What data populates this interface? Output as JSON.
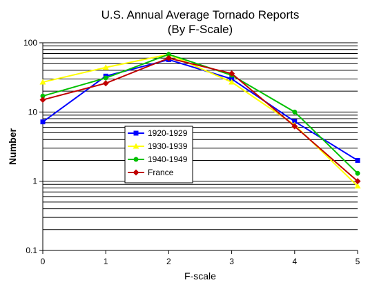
{
  "chart_data": {
    "type": "line",
    "title": "U.S. Annual Average Tornado Reports",
    "subtitle": "(By F-Scale)",
    "xlabel": "F-scale",
    "ylabel": "Number",
    "x": [
      0,
      1,
      2,
      3,
      4,
      5
    ],
    "x_tick_labels": [
      "0",
      "1",
      "2",
      "3",
      "4",
      "5"
    ],
    "y_scale": "log",
    "ylim": [
      0.1,
      100
    ],
    "y_tick_labels": [
      "0.1",
      "1",
      "10",
      "100"
    ],
    "grid": "horizontal minor and major lines on log scale",
    "legend_placement": "center-left",
    "series": [
      {
        "name": "1920-1929",
        "color": "#0000ff",
        "marker": "square",
        "values": [
          7.2,
          33,
          57,
          30,
          7.3,
          2.0
        ]
      },
      {
        "name": "1930-1939",
        "color": "#ffff00",
        "marker": "triangle",
        "values": [
          27,
          44,
          68,
          27,
          6.5,
          0.85
        ]
      },
      {
        "name": "1940-1949",
        "color": "#00c000",
        "marker": "circle",
        "values": [
          17,
          31,
          68,
          34,
          10,
          1.3
        ]
      },
      {
        "name": "France",
        "color": "#c00000",
        "marker": "diamond",
        "values": [
          15,
          26,
          60,
          36,
          6.2,
          1.0
        ]
      }
    ]
  }
}
